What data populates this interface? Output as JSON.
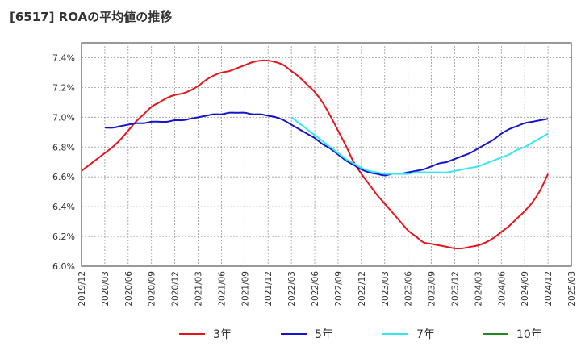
{
  "title": "[6517]  ROAの平均値の推移",
  "colors": {
    "3年": "#e8141c",
    "5年": "#1414c8",
    "7年": "#33e8f0",
    "10年": "#1f8a1f"
  },
  "chart_data": {
    "type": "line",
    "title": "[6517]  ROAの平均値の推移",
    "xlabel": "",
    "ylabel": "",
    "ylim": [
      6.0,
      7.5
    ],
    "y_ticks": [
      "6.0%",
      "6.2%",
      "6.4%",
      "6.6%",
      "6.8%",
      "7.0%",
      "7.2%",
      "7.4%"
    ],
    "y_tick_values": [
      6.0,
      6.2,
      6.4,
      6.6,
      6.8,
      7.0,
      7.2,
      7.4
    ],
    "x_ticks": [
      "2019/12",
      "2020/03",
      "2020/06",
      "2020/09",
      "2020/12",
      "2021/03",
      "2021/06",
      "2021/09",
      "2021/12",
      "2022/03",
      "2022/06",
      "2022/09",
      "2022/12",
      "2023/03",
      "2023/06",
      "2023/09",
      "2023/12",
      "2024/03",
      "2024/06",
      "2024/09",
      "2024/12",
      "2025/03"
    ],
    "grid": true,
    "legend_position": "bottom",
    "series": [
      {
        "name": "3年",
        "color": "#e8141c",
        "points": [
          [
            "2019/12",
            6.64
          ],
          [
            "2020/01",
            6.68
          ],
          [
            "2020/02",
            6.72
          ],
          [
            "2020/03",
            6.76
          ],
          [
            "2020/04",
            6.8
          ],
          [
            "2020/05",
            6.85
          ],
          [
            "2020/06",
            6.91
          ],
          [
            "2020/07",
            6.97
          ],
          [
            "2020/08",
            7.02
          ],
          [
            "2020/09",
            7.07
          ],
          [
            "2020/10",
            7.1
          ],
          [
            "2020/11",
            7.13
          ],
          [
            "2020/12",
            7.15
          ],
          [
            "2021/01",
            7.16
          ],
          [
            "2021/02",
            7.18
          ],
          [
            "2021/03",
            7.21
          ],
          [
            "2021/04",
            7.25
          ],
          [
            "2021/05",
            7.28
          ],
          [
            "2021/06",
            7.3
          ],
          [
            "2021/07",
            7.31
          ],
          [
            "2021/08",
            7.33
          ],
          [
            "2021/09",
            7.35
          ],
          [
            "2021/10",
            7.37
          ],
          [
            "2021/11",
            7.38
          ],
          [
            "2021/12",
            7.38
          ],
          [
            "2022/01",
            7.37
          ],
          [
            "2022/02",
            7.35
          ],
          [
            "2022/03",
            7.31
          ],
          [
            "2022/04",
            7.27
          ],
          [
            "2022/05",
            7.22
          ],
          [
            "2022/06",
            7.17
          ],
          [
            "2022/07",
            7.1
          ],
          [
            "2022/08",
            7.01
          ],
          [
            "2022/09",
            6.91
          ],
          [
            "2022/10",
            6.81
          ],
          [
            "2022/11",
            6.7
          ],
          [
            "2022/12",
            6.62
          ],
          [
            "2023/01",
            6.55
          ],
          [
            "2023/02",
            6.48
          ],
          [
            "2023/03",
            6.42
          ],
          [
            "2023/04",
            6.36
          ],
          [
            "2023/05",
            6.3
          ],
          [
            "2023/06",
            6.24
          ],
          [
            "2023/07",
            6.2
          ],
          [
            "2023/08",
            6.16
          ],
          [
            "2023/09",
            6.15
          ],
          [
            "2023/10",
            6.14
          ],
          [
            "2023/11",
            6.13
          ],
          [
            "2023/12",
            6.12
          ],
          [
            "2024/01",
            6.12
          ],
          [
            "2024/02",
            6.13
          ],
          [
            "2024/03",
            6.14
          ],
          [
            "2024/04",
            6.16
          ],
          [
            "2024/05",
            6.19
          ],
          [
            "2024/06",
            6.23
          ],
          [
            "2024/07",
            6.27
          ],
          [
            "2024/08",
            6.32
          ],
          [
            "2024/09",
            6.37
          ],
          [
            "2024/10",
            6.43
          ],
          [
            "2024/11",
            6.51
          ],
          [
            "2024/12",
            6.62
          ]
        ]
      },
      {
        "name": "5年",
        "color": "#1414c8",
        "points": [
          [
            "2020/03",
            6.93
          ],
          [
            "2020/04",
            6.93
          ],
          [
            "2020/05",
            6.94
          ],
          [
            "2020/06",
            6.95
          ],
          [
            "2020/07",
            6.96
          ],
          [
            "2020/08",
            6.96
          ],
          [
            "2020/09",
            6.97
          ],
          [
            "2020/10",
            6.97
          ],
          [
            "2020/11",
            6.97
          ],
          [
            "2020/12",
            6.98
          ],
          [
            "2021/01",
            6.98
          ],
          [
            "2021/02",
            6.99
          ],
          [
            "2021/03",
            7.0
          ],
          [
            "2021/04",
            7.01
          ],
          [
            "2021/05",
            7.02
          ],
          [
            "2021/06",
            7.02
          ],
          [
            "2021/07",
            7.03
          ],
          [
            "2021/08",
            7.03
          ],
          [
            "2021/09",
            7.03
          ],
          [
            "2021/10",
            7.02
          ],
          [
            "2021/11",
            7.02
          ],
          [
            "2021/12",
            7.01
          ],
          [
            "2022/01",
            7.0
          ],
          [
            "2022/02",
            6.98
          ],
          [
            "2022/03",
            6.95
          ],
          [
            "2022/04",
            6.92
          ],
          [
            "2022/05",
            6.89
          ],
          [
            "2022/06",
            6.86
          ],
          [
            "2022/07",
            6.82
          ],
          [
            "2022/08",
            6.79
          ],
          [
            "2022/09",
            6.75
          ],
          [
            "2022/10",
            6.71
          ],
          [
            "2022/11",
            6.68
          ],
          [
            "2022/12",
            6.65
          ],
          [
            "2023/01",
            6.63
          ],
          [
            "2023/02",
            6.62
          ],
          [
            "2023/03",
            6.61
          ],
          [
            "2023/04",
            6.62
          ],
          [
            "2023/05",
            6.62
          ],
          [
            "2023/06",
            6.63
          ],
          [
            "2023/07",
            6.64
          ],
          [
            "2023/08",
            6.65
          ],
          [
            "2023/09",
            6.67
          ],
          [
            "2023/10",
            6.69
          ],
          [
            "2023/11",
            6.7
          ],
          [
            "2023/12",
            6.72
          ],
          [
            "2024/01",
            6.74
          ],
          [
            "2024/02",
            6.76
          ],
          [
            "2024/03",
            6.79
          ],
          [
            "2024/04",
            6.82
          ],
          [
            "2024/05",
            6.85
          ],
          [
            "2024/06",
            6.89
          ],
          [
            "2024/07",
            6.92
          ],
          [
            "2024/08",
            6.94
          ],
          [
            "2024/09",
            6.96
          ],
          [
            "2024/10",
            6.97
          ],
          [
            "2024/11",
            6.98
          ],
          [
            "2024/12",
            6.99
          ]
        ]
      },
      {
        "name": "7年",
        "color": "#33e8f0",
        "points": [
          [
            "2022/03",
            7.0
          ],
          [
            "2022/04",
            6.96
          ],
          [
            "2022/05",
            6.92
          ],
          [
            "2022/06",
            6.88
          ],
          [
            "2022/07",
            6.84
          ],
          [
            "2022/08",
            6.8
          ],
          [
            "2022/09",
            6.76
          ],
          [
            "2022/10",
            6.72
          ],
          [
            "2022/11",
            6.69
          ],
          [
            "2022/12",
            6.66
          ],
          [
            "2023/01",
            6.64
          ],
          [
            "2023/02",
            6.63
          ],
          [
            "2023/03",
            6.62
          ],
          [
            "2023/04",
            6.62
          ],
          [
            "2023/05",
            6.62
          ],
          [
            "2023/06",
            6.62
          ],
          [
            "2023/07",
            6.63
          ],
          [
            "2023/08",
            6.63
          ],
          [
            "2023/09",
            6.63
          ],
          [
            "2023/10",
            6.63
          ],
          [
            "2023/11",
            6.63
          ],
          [
            "2023/12",
            6.64
          ],
          [
            "2024/01",
            6.65
          ],
          [
            "2024/02",
            6.66
          ],
          [
            "2024/03",
            6.67
          ],
          [
            "2024/04",
            6.69
          ],
          [
            "2024/05",
            6.71
          ],
          [
            "2024/06",
            6.73
          ],
          [
            "2024/07",
            6.75
          ],
          [
            "2024/08",
            6.78
          ],
          [
            "2024/09",
            6.8
          ],
          [
            "2024/10",
            6.83
          ],
          [
            "2024/11",
            6.86
          ],
          [
            "2024/12",
            6.89
          ]
        ]
      },
      {
        "name": "10年",
        "color": "#1f8a1f",
        "points": []
      }
    ]
  }
}
